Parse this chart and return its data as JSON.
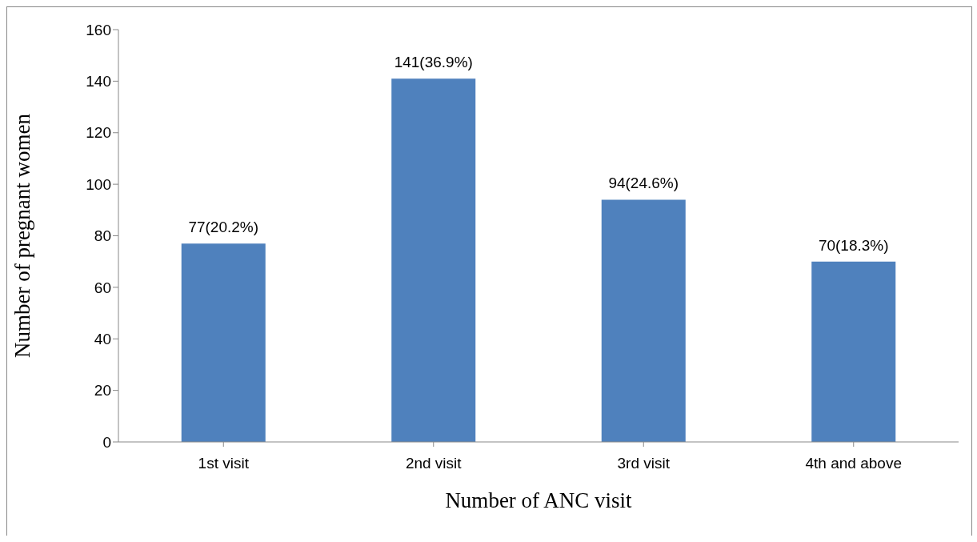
{
  "chart_data": {
    "type": "bar",
    "xlabel": "Number of ANC visit",
    "ylabel": "Number of pregnant  women",
    "categories": [
      "1st visit",
      "2nd visit",
      "3rd visit",
      "4th and above"
    ],
    "values": [
      77,
      141,
      94,
      70
    ],
    "value_labels": [
      "77(20.2%)",
      "141(36.9%)",
      "94(24.6%)",
      "70(18.3%)"
    ],
    "color": "#4f81bd",
    "ylim": [
      0,
      160
    ],
    "yticks": [
      0,
      20,
      40,
      60,
      80,
      100,
      120,
      140,
      160
    ],
    "grid": false,
    "legend": false
  }
}
